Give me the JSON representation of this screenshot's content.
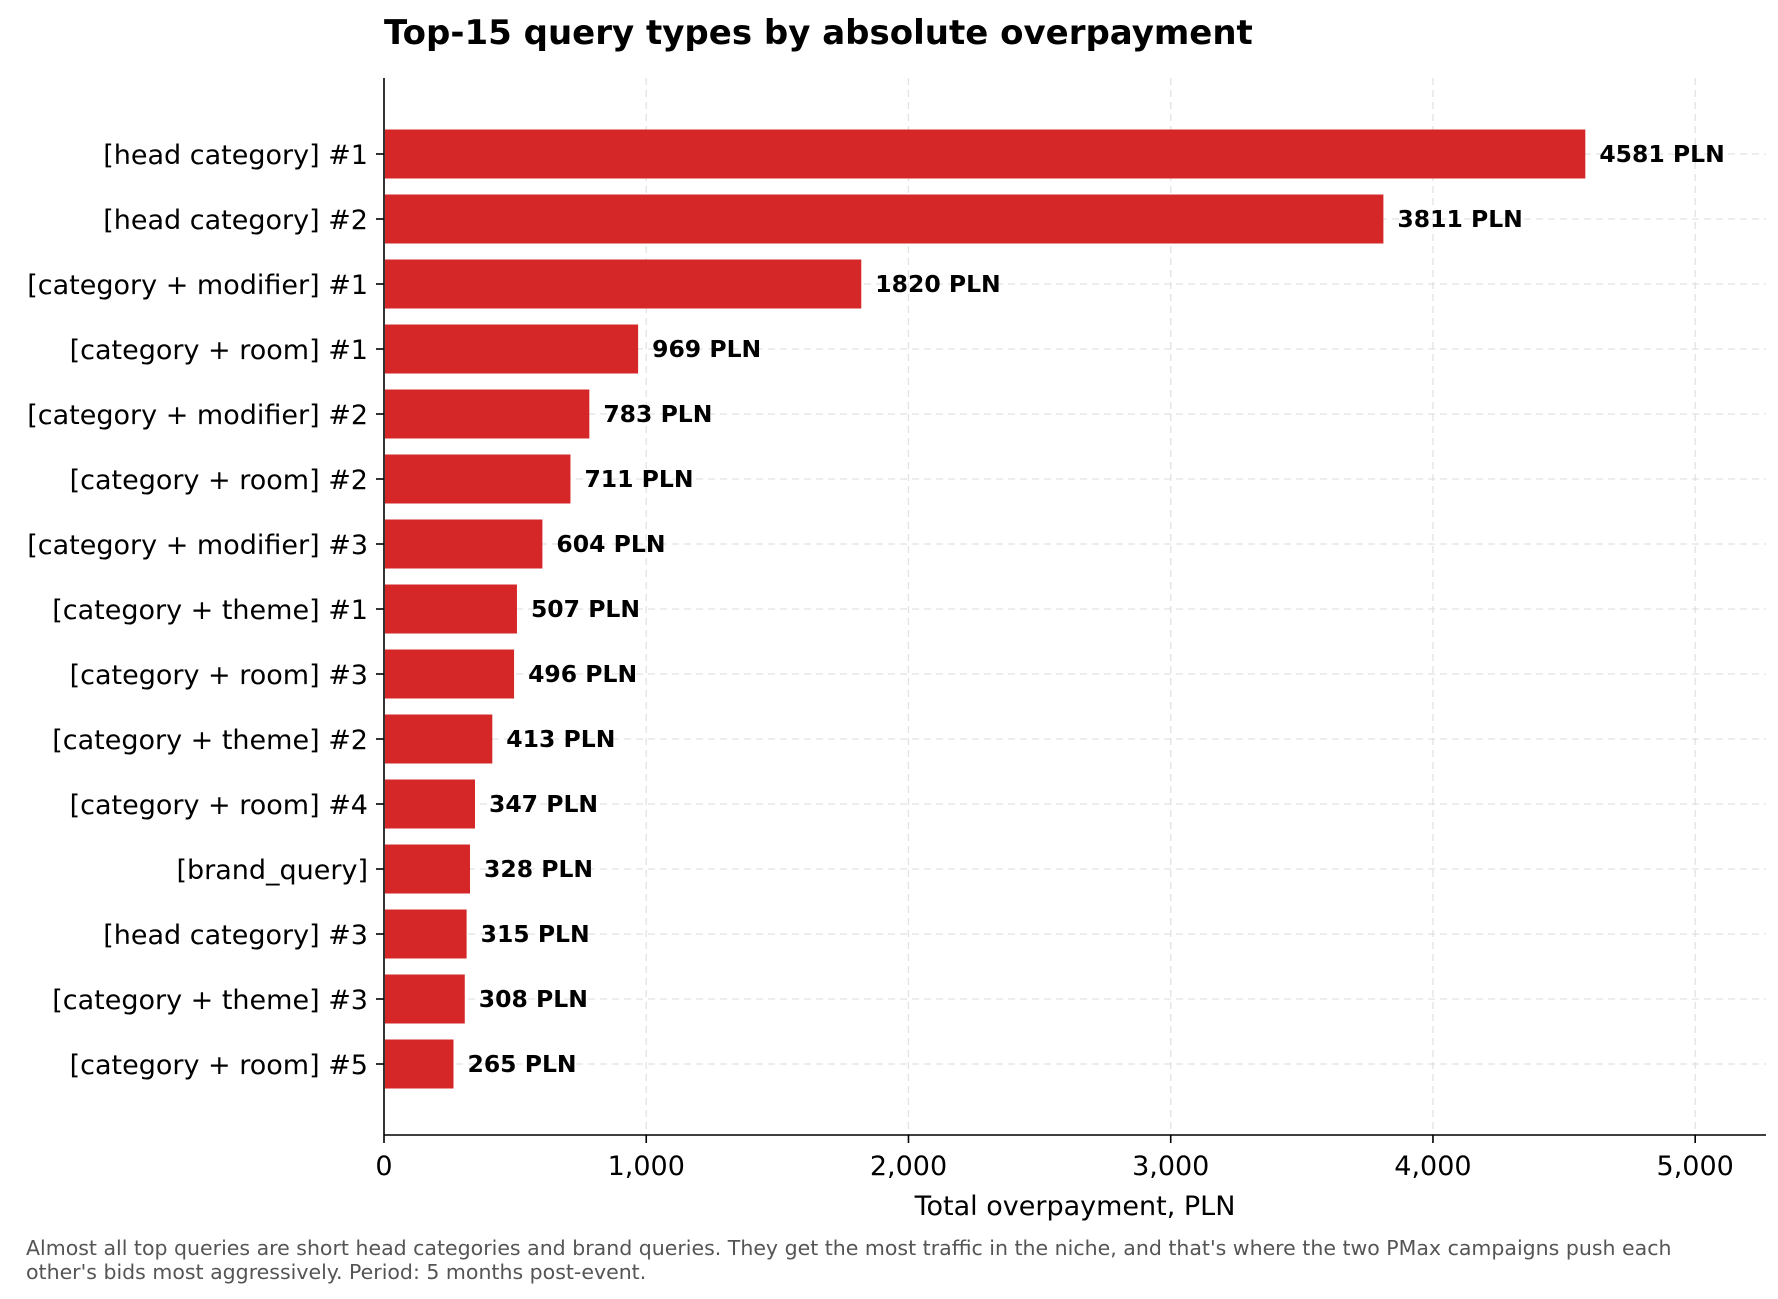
{
  "chart_data": {
    "type": "bar",
    "orientation": "horizontal",
    "title": "Top-15 query types by absolute overpayment",
    "xlabel": "Total overpayment, PLN",
    "ylabel": "",
    "xlim": [
      0,
      5270
    ],
    "xticks": [
      0,
      1000,
      2000,
      3000,
      4000,
      5000
    ],
    "xtick_labels": [
      "0",
      "1,000",
      "2,000",
      "3,000",
      "4,000",
      "5,000"
    ],
    "grid": true,
    "bar_color": "#d62728",
    "categories": [
      "[head category] #1",
      "[head category] #2",
      "[category + modifier] #1",
      "[category + room] #1",
      "[category + modifier] #2",
      "[category + room] #2",
      "[category + modifier] #3",
      "[category + theme] #1",
      "[category + room] #3",
      "[category + theme] #2",
      "[category + room] #4",
      "[brand_query]",
      "[head category] #3",
      "[category + theme] #3",
      "[category + room] #5"
    ],
    "values": [
      4581,
      3811,
      1820,
      969,
      783,
      711,
      604,
      507,
      496,
      413,
      347,
      328,
      315,
      308,
      265
    ],
    "data_labels": [
      "4581 PLN",
      "3811 PLN",
      "1820 PLN",
      "969 PLN",
      "783 PLN",
      "711 PLN",
      "604 PLN",
      "507 PLN",
      "496 PLN",
      "413 PLN",
      "347 PLN",
      "328 PLN",
      "315 PLN",
      "308 PLN",
      "265 PLN"
    ]
  },
  "footnote": "Almost all top queries are short head categories and brand queries. They get the most traffic in the niche, and that's where the two PMax campaigns push each other's bids most aggressively. Period: 5 months post-event."
}
